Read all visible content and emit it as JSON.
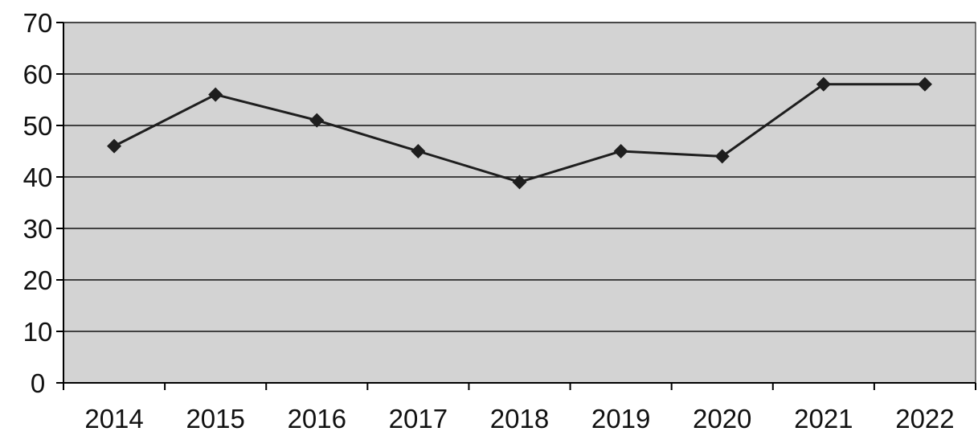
{
  "chart_data": {
    "type": "line",
    "title": "",
    "xlabel": "",
    "ylabel": "",
    "categories": [
      "2014",
      "2015",
      "2016",
      "2017",
      "2018",
      "2019",
      "2020",
      "2021",
      "2022"
    ],
    "series": [
      {
        "values": [
          46,
          56,
          51,
          45,
          39,
          45,
          44,
          58,
          58
        ]
      }
    ],
    "ylim": [
      0,
      70
    ],
    "yticks": [
      "0",
      "10",
      "20",
      "30",
      "40",
      "50",
      "60",
      "70"
    ],
    "grid": true,
    "marker": "diamond",
    "colors": {
      "plot_background": "#d3d3d3",
      "line": "#1e1e1e",
      "gridline": "#111111",
      "text": "#111111"
    }
  }
}
